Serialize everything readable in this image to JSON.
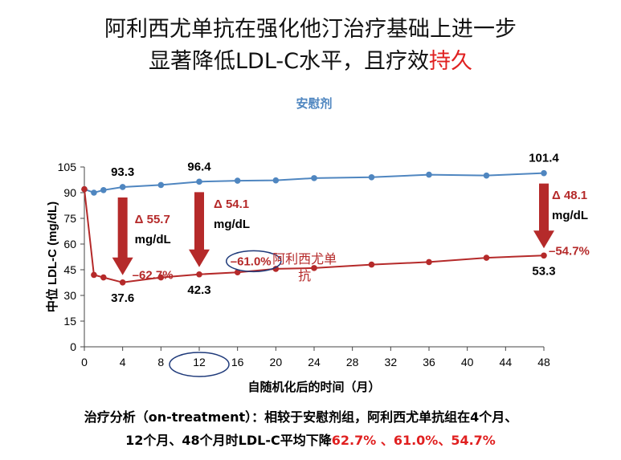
{
  "title": {
    "line1": "阿利西尤单抗在强化他汀治疗基础上进一步",
    "line2_prefix": "显著降低LDL-C水平，且疗效",
    "line2_highlight": "持久"
  },
  "colors": {
    "placebo": "#4f86c0",
    "alirocumab": "#b52a2a",
    "arrow": "#b52a2a",
    "highlight": "#e02020",
    "axis": "#444444",
    "ellipse": "#1f3a7a"
  },
  "chart_data": {
    "type": "line",
    "xlabel": "自随机化后的时间（月）",
    "ylabel": "中位 LDL-C (mg/dL)",
    "xlim": [
      0,
      48
    ],
    "ylim": [
      0,
      105
    ],
    "xticks": [
      0,
      4,
      8,
      12,
      16,
      20,
      24,
      28,
      32,
      36,
      40,
      44,
      48
    ],
    "yticks": [
      0,
      15,
      30,
      45,
      60,
      75,
      90,
      105
    ],
    "grid": false,
    "series": [
      {
        "name": "安慰剂",
        "color": "#4f86c0",
        "x": [
          0,
          1,
          2,
          4,
          8,
          12,
          16,
          20,
          24,
          30,
          36,
          42,
          48
        ],
        "y": [
          92,
          90,
          91.5,
          93.3,
          94.5,
          96.4,
          97,
          97.2,
          98.5,
          99,
          100.5,
          100,
          101.4
        ]
      },
      {
        "name": "阿利西尤单抗",
        "color": "#b52a2a",
        "x": [
          0,
          1,
          2,
          4,
          8,
          12,
          16,
          20,
          24,
          30,
          36,
          42,
          48
        ],
        "y": [
          92,
          42,
          40.5,
          37.6,
          40.5,
          42.3,
          43.5,
          45.5,
          46,
          48,
          49.5,
          52,
          53.3
        ]
      }
    ],
    "value_labels": [
      {
        "x": 4,
        "y": 93.3,
        "text": "93.3",
        "pos": "above"
      },
      {
        "x": 12,
        "y": 96.4,
        "text": "96.4",
        "pos": "above"
      },
      {
        "x": 48,
        "y": 101.4,
        "text": "101.4",
        "pos": "above"
      },
      {
        "x": 4,
        "y": 37.6,
        "text": "37.6",
        "pos": "below"
      },
      {
        "x": 12,
        "y": 42.3,
        "text": "42.3",
        "pos": "below"
      },
      {
        "x": 48,
        "y": 53.3,
        "text": "53.3",
        "pos": "below"
      }
    ],
    "reductions": [
      {
        "x": 4,
        "from": 93.3,
        "to": 37.6,
        "delta": "Δ 55.7",
        "unit": "mg/dL",
        "percent": "–62.7%"
      },
      {
        "x": 12,
        "from": 96.4,
        "to": 42.3,
        "delta": "Δ 54.1",
        "unit": "mg/dL",
        "percent": "–61.0%"
      },
      {
        "x": 48,
        "from": 101.4,
        "to": 53.3,
        "delta": "Δ 48.1",
        "unit": "mg/dL",
        "percent": "–54.7%"
      }
    ],
    "series_labels": {
      "placebo": "安慰剂",
      "alirocumab_line1": "阿利西尤单",
      "alirocumab_line2": "抗"
    }
  },
  "footer": {
    "line1": "治疗分析（on-treatment）：相较于安慰剂组，阿利西尤单抗组在4个月、",
    "line2_prefix": "12个月、48个月时LDL-C平均下降",
    "line2_highlight": "62.7% 、61.0%、54.7%"
  }
}
